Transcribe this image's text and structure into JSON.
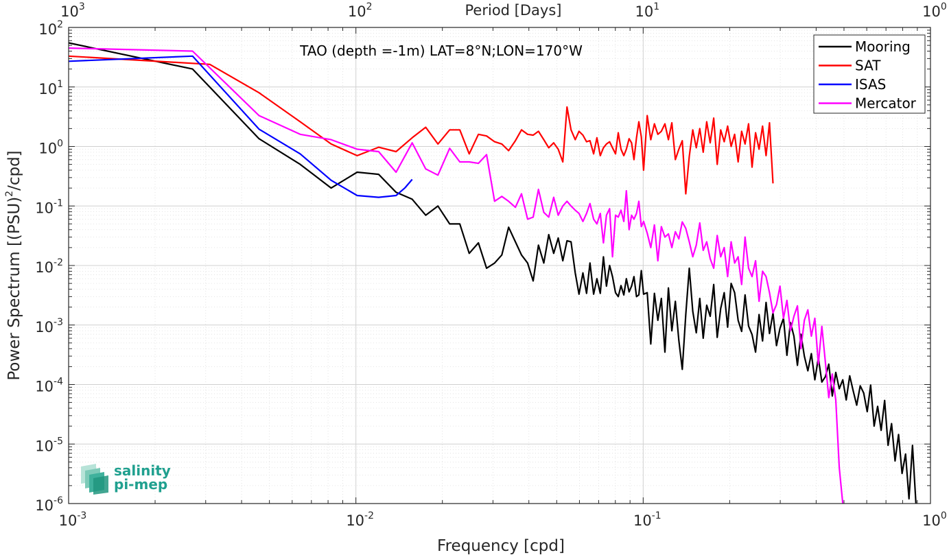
{
  "chart_data": {
    "type": "line",
    "title": "TAO (depth =-1m) LAT=8°N;LON=170°W",
    "xlabel": "Frequency [cpd]",
    "ylabel": "Power Spectrum [(PSU)",
    "ylabel_sup": "2",
    "ylabel_tail": "/cpd]",
    "top_axis_label": "Period [Days]",
    "x_scale": "log",
    "y_scale": "log",
    "xlim": [
      0.001,
      1
    ],
    "ylim": [
      1e-06,
      100
    ],
    "grid": true,
    "legend_position": "top-right",
    "x_ticks": [
      {
        "base": "10",
        "exp": "-3"
      },
      {
        "base": "10",
        "exp": "-2"
      },
      {
        "base": "10",
        "exp": "-1"
      },
      {
        "base": "10",
        "exp": "0"
      }
    ],
    "top_ticks": [
      {
        "base": "10",
        "exp": "3"
      },
      {
        "base": "10",
        "exp": "2"
      },
      {
        "base": "10",
        "exp": "1"
      },
      {
        "base": "10",
        "exp": "0"
      }
    ],
    "y_ticks": [
      {
        "base": "10",
        "exp": "2"
      },
      {
        "base": "10",
        "exp": "1"
      },
      {
        "base": "10",
        "exp": "0"
      },
      {
        "base": "10",
        "exp": "-1"
      },
      {
        "base": "10",
        "exp": "-2"
      },
      {
        "base": "10",
        "exp": "-3"
      },
      {
        "base": "10",
        "exp": "-4"
      },
      {
        "base": "10",
        "exp": "-5"
      },
      {
        "base": "10",
        "exp": "-6"
      }
    ],
    "series": [
      {
        "name": "Mooring",
        "color": "#000000",
        "x": [
          0.001,
          0.0027,
          0.0046,
          0.0064,
          0.0082,
          0.0101,
          0.012,
          0.0138,
          0.0157,
          0.0175,
          0.0193,
          0.0212,
          0.023,
          0.0248,
          0.0267,
          0.0285,
          0.0304,
          0.0322,
          0.034,
          0.0359,
          0.0377,
          0.0396,
          0.0414,
          0.0432,
          0.0451,
          0.0469,
          0.0488,
          0.0506,
          0.0525,
          0.0543,
          0.0561,
          0.058,
          0.0598,
          0.0617,
          0.0635,
          0.0653,
          0.0672,
          0.069,
          0.0709,
          0.0727,
          0.0745,
          0.0764,
          0.0782,
          0.0801,
          0.0819,
          0.0837,
          0.0856,
          0.0874,
          0.0893,
          0.0911,
          0.0929,
          0.0948,
          0.0966,
          0.0985,
          0.1003,
          0.1033,
          0.1063,
          0.1094,
          0.1125,
          0.1157,
          0.119,
          0.1224,
          0.1258,
          0.1294,
          0.1331,
          0.1368,
          0.1407,
          0.1447,
          0.1488,
          0.153,
          0.1574,
          0.1618,
          0.1664,
          0.1711,
          0.176,
          0.181,
          0.1861,
          0.1914,
          0.1968,
          0.2024,
          0.2081,
          0.214,
          0.2201,
          0.2263,
          0.2327,
          0.2393,
          0.2461,
          0.2531,
          0.2603,
          0.2677,
          0.2752,
          0.283,
          0.2911,
          0.2993,
          0.3078,
          0.3165,
          0.3255,
          0.3347,
          0.3442,
          0.354,
          0.364,
          0.3743,
          0.3849,
          0.3958,
          0.4071,
          0.4186,
          0.4305,
          0.4427,
          0.4552,
          0.4681,
          0.4814,
          0.4951,
          0.5091,
          0.5235,
          0.5384,
          0.5537,
          0.5694,
          0.5855,
          0.6021,
          0.6192,
          0.6367,
          0.6548,
          0.6733,
          0.6924,
          0.712,
          0.7322,
          0.753,
          0.7743,
          0.7963,
          0.8188,
          0.842,
          0.8659,
          0.89
        ],
        "y": [
          55,
          20,
          1.35,
          0.5,
          0.2,
          0.37,
          0.34,
          0.17,
          0.13,
          0.07,
          0.1,
          0.05,
          0.05,
          0.016,
          0.024,
          0.009,
          0.011,
          0.015,
          0.044,
          0.025,
          0.015,
          0.011,
          0.0055,
          0.022,
          0.011,
          0.033,
          0.016,
          0.029,
          0.012,
          0.026,
          0.025,
          0.0075,
          0.0033,
          0.0075,
          0.0034,
          0.011,
          0.0033,
          0.006,
          0.0034,
          0.014,
          0.0045,
          0.01,
          0.0065,
          0.0035,
          0.003,
          0.0046,
          0.0032,
          0.006,
          0.0036,
          0.0045,
          0.0065,
          0.003,
          0.0032,
          0.0082,
          0.0033,
          0.0035,
          0.00048,
          0.0034,
          0.0012,
          0.0028,
          0.00035,
          0.0042,
          0.0008,
          0.0025,
          0.00055,
          0.00018,
          0.0015,
          0.009,
          0.0017,
          0.00074,
          0.0028,
          0.0006,
          0.00215,
          0.0014,
          0.0048,
          0.00062,
          0.0019,
          0.0035,
          0.00092,
          0.005,
          0.0035,
          0.0012,
          0.00078,
          0.0032,
          0.00096,
          0.00069,
          0.00035,
          0.0015,
          0.00054,
          0.0024,
          0.00072,
          0.0016,
          0.00045,
          0.00088,
          0.0013,
          0.00031,
          0.0011,
          0.00065,
          0.00021,
          0.0007,
          0.0003,
          0.00017,
          0.00033,
          0.00012,
          0.00028,
          0.00011,
          0.000135,
          0.00022,
          6.4e-05,
          0.00016,
          8.5e-05,
          0.00012,
          5.5e-05,
          0.00014,
          7.8e-05,
          4.5e-05,
          9.5e-05,
          7.2e-05,
          3.5e-05,
          9.8e-05,
          2e-05,
          4.3e-05,
          1.7e-05,
          5.4e-05,
          9.5e-06,
          2.2e-05,
          5.2e-06,
          1.45e-05,
          3.2e-06,
          6.8e-06,
          1.2e-06,
          9.5e-06,
          1e-06
        ]
      },
      {
        "name": "SAT",
        "color": "#ff0000",
        "x": [
          0.001,
          0.0031,
          0.0046,
          0.0064,
          0.0082,
          0.0101,
          0.012,
          0.0138,
          0.0157,
          0.0175,
          0.0193,
          0.0212,
          0.023,
          0.0248,
          0.0267,
          0.0285,
          0.0304,
          0.0322,
          0.034,
          0.0359,
          0.0377,
          0.0396,
          0.0414,
          0.0432,
          0.0451,
          0.0469,
          0.0488,
          0.0506,
          0.0525,
          0.0543,
          0.0561,
          0.058,
          0.0598,
          0.0617,
          0.0635,
          0.0653,
          0.0672,
          0.069,
          0.0709,
          0.0727,
          0.0745,
          0.0764,
          0.0782,
          0.0801,
          0.0819,
          0.0837,
          0.0856,
          0.0874,
          0.0893,
          0.0911,
          0.0929,
          0.0948,
          0.0966,
          0.0985,
          0.1003,
          0.1033,
          0.1063,
          0.1094,
          0.1125,
          0.1157,
          0.119,
          0.1224,
          0.1258,
          0.1294,
          0.1331,
          0.1368,
          0.1407,
          0.1447,
          0.1488,
          0.153,
          0.1574,
          0.1618,
          0.1664,
          0.1711,
          0.176,
          0.181,
          0.1861,
          0.1914,
          0.1968,
          0.2024,
          0.2081,
          0.214,
          0.2201,
          0.2263,
          0.2327,
          0.2393,
          0.2461,
          0.2531,
          0.2603,
          0.2677,
          0.2752,
          0.283
        ],
        "y": [
          33,
          24,
          8,
          2.6,
          1.1,
          0.7,
          0.97,
          0.82,
          1.4,
          2.1,
          1.1,
          1.9,
          1.9,
          0.75,
          1.6,
          1.5,
          1.2,
          1.1,
          0.85,
          1.25,
          1.9,
          1.6,
          1.55,
          1.8,
          1.3,
          0.95,
          1.15,
          0.9,
          0.55,
          4.6,
          1.9,
          1.3,
          1.8,
          1.55,
          1.2,
          1.25,
          0.75,
          1.4,
          0.7,
          0.95,
          1.1,
          1.2,
          0.95,
          0.75,
          1.7,
          0.9,
          0.7,
          0.9,
          1.35,
          1.15,
          0.6,
          1.4,
          2.6,
          1.45,
          0.4,
          3.3,
          1.3,
          2.4,
          1.6,
          1.8,
          2.4,
          1.3,
          2.5,
          0.6,
          0.9,
          1.25,
          0.16,
          0.68,
          1.9,
          0.95,
          2.0,
          0.8,
          2.6,
          1.15,
          3.0,
          0.5,
          1.9,
          1.2,
          2.2,
          1.0,
          1.6,
          0.55,
          1.8,
          1.1,
          2.4,
          0.45,
          1.7,
          0.9,
          2.2,
          0.7,
          2.5,
          0.24
        ]
      },
      {
        "name": "ISAS",
        "color": "#0000ff",
        "x": [
          0.001,
          0.0027,
          0.0046,
          0.0064,
          0.0082,
          0.0101,
          0.012,
          0.0138,
          0.0148,
          0.0157
        ],
        "y": [
          27,
          33,
          1.95,
          0.75,
          0.27,
          0.15,
          0.14,
          0.15,
          0.2,
          0.28
        ]
      },
      {
        "name": "Mercator",
        "color": "#ff00ff",
        "x": [
          0.001,
          0.0027,
          0.0046,
          0.0064,
          0.0082,
          0.0101,
          0.012,
          0.0138,
          0.0157,
          0.0175,
          0.0193,
          0.0212,
          0.023,
          0.0248,
          0.0267,
          0.0285,
          0.0304,
          0.0322,
          0.034,
          0.0359,
          0.0377,
          0.0396,
          0.0414,
          0.0432,
          0.0451,
          0.0469,
          0.0488,
          0.0506,
          0.0525,
          0.0543,
          0.0561,
          0.058,
          0.0598,
          0.0617,
          0.0635,
          0.0653,
          0.0672,
          0.069,
          0.0709,
          0.0727,
          0.0745,
          0.0764,
          0.0782,
          0.0801,
          0.0819,
          0.0837,
          0.0856,
          0.0874,
          0.0893,
          0.0911,
          0.0929,
          0.0948,
          0.0966,
          0.0985,
          0.1003,
          0.1033,
          0.1063,
          0.1094,
          0.1125,
          0.1157,
          0.119,
          0.1224,
          0.1258,
          0.1294,
          0.1331,
          0.1368,
          0.1407,
          0.1447,
          0.1488,
          0.153,
          0.1574,
          0.1618,
          0.1664,
          0.1711,
          0.176,
          0.181,
          0.1861,
          0.1914,
          0.1968,
          0.2024,
          0.2081,
          0.214,
          0.2201,
          0.2263,
          0.2327,
          0.2393,
          0.2461,
          0.2531,
          0.2603,
          0.2677,
          0.2752,
          0.283,
          0.2911,
          0.2993,
          0.3078,
          0.3165,
          0.3255,
          0.3347,
          0.3442,
          0.354,
          0.364,
          0.3743,
          0.3849,
          0.3958,
          0.4071,
          0.4186,
          0.4305,
          0.4427,
          0.4552,
          0.4681,
          0.4814,
          0.4951
        ],
        "y": [
          45,
          40,
          3.3,
          1.6,
          1.3,
          0.9,
          0.82,
          0.37,
          1.15,
          0.42,
          0.33,
          0.93,
          0.55,
          0.55,
          0.52,
          0.73,
          0.12,
          0.145,
          0.12,
          0.095,
          0.16,
          0.06,
          0.065,
          0.19,
          0.078,
          0.065,
          0.14,
          0.07,
          0.1,
          0.12,
          0.1,
          0.085,
          0.075,
          0.055,
          0.075,
          0.11,
          0.06,
          0.05,
          0.075,
          0.024,
          0.07,
          0.09,
          0.014,
          0.07,
          0.065,
          0.085,
          0.055,
          0.18,
          0.04,
          0.07,
          0.06,
          0.075,
          0.12,
          0.045,
          0.055,
          0.035,
          0.02,
          0.048,
          0.012,
          0.045,
          0.03,
          0.034,
          0.02,
          0.037,
          0.028,
          0.054,
          0.042,
          0.025,
          0.014,
          0.022,
          0.052,
          0.018,
          0.025,
          0.013,
          0.009,
          0.032,
          0.014,
          0.02,
          0.0065,
          0.025,
          0.011,
          0.014,
          0.0048,
          0.03,
          0.009,
          0.0065,
          0.012,
          0.0025,
          0.008,
          0.0065,
          0.0035,
          0.0016,
          0.0022,
          0.0045,
          0.0013,
          0.0026,
          0.0008,
          0.0014,
          0.0021,
          0.0004,
          0.0012,
          0.0018,
          0.00065,
          0.0013,
          0.00022,
          0.00095,
          0.00024,
          6e-05,
          0.00015,
          5.5e-05,
          4e-06,
          1e-06
        ]
      }
    ]
  },
  "logo": {
    "line1": "salinity",
    "line2": "pi-mep"
  }
}
